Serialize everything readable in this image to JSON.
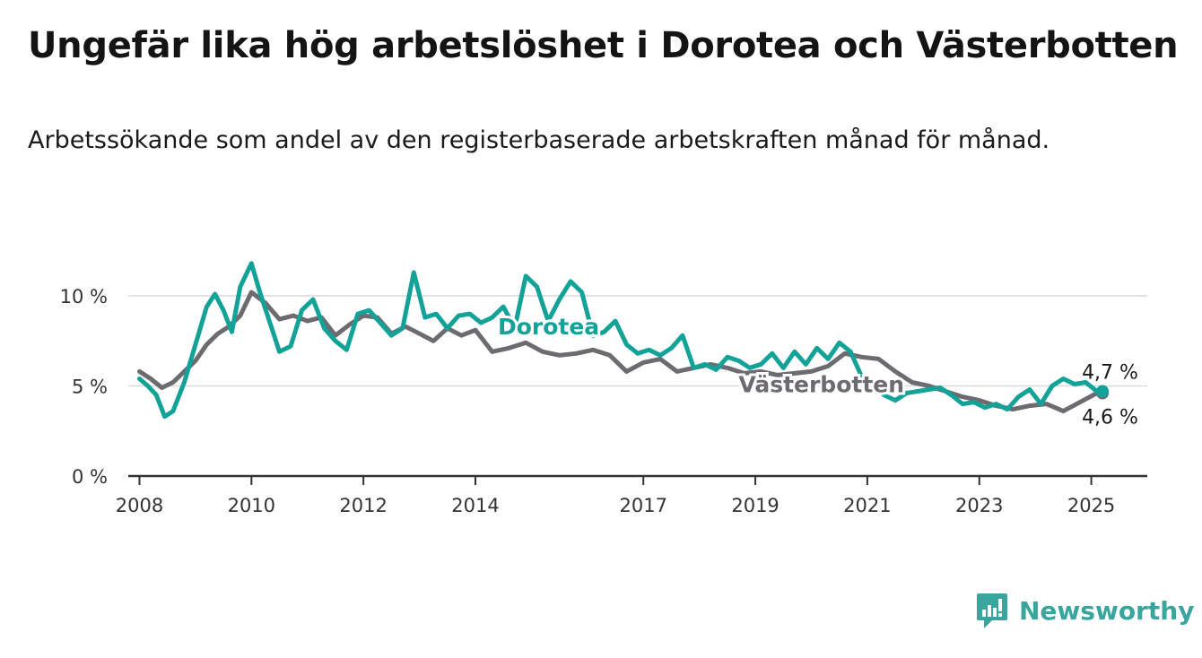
{
  "title": "Ungefär lika hög arbetslöshet i Dorotea och Västerbotten",
  "subtitle": "Arbetssökande som andel av den registerbaserade arbetskraften månad för månad.",
  "brand": {
    "name": "Newsworthy",
    "icon": "newsworthy-logo-icon",
    "color": "#3aa59c"
  },
  "chart_data": {
    "type": "line",
    "title": "",
    "xlabel": "",
    "ylabel": "",
    "xlim": [
      2007.8,
      2026.0
    ],
    "ylim": [
      0,
      10
    ],
    "grid": true,
    "legend": "inline labels",
    "x_ticks": [
      {
        "value": 2008,
        "label": "2008"
      },
      {
        "value": 2010,
        "label": "2010"
      },
      {
        "value": 2012,
        "label": "2012"
      },
      {
        "value": 2014,
        "label": "2014"
      },
      {
        "value": 2017,
        "label": "2017"
      },
      {
        "value": 2019,
        "label": "2019"
      },
      {
        "value": 2021,
        "label": "2021"
      },
      {
        "value": 2023,
        "label": "2023"
      },
      {
        "value": 2025,
        "label": "2025"
      }
    ],
    "y_ticks": [
      {
        "value": 0,
        "label": "0 %"
      },
      {
        "value": 5,
        "label": "5 %"
      },
      {
        "value": 10,
        "label": "10 %"
      }
    ],
    "series": [
      {
        "name": "Västerbotten",
        "color": "#6d6a70",
        "end_label": "4,6 %",
        "points": [
          [
            2008.0,
            5.8
          ],
          [
            2008.2,
            5.4
          ],
          [
            2008.4,
            4.9
          ],
          [
            2008.6,
            5.2
          ],
          [
            2008.8,
            5.8
          ],
          [
            2009.0,
            6.4
          ],
          [
            2009.2,
            7.3
          ],
          [
            2009.4,
            7.9
          ],
          [
            2009.6,
            8.3
          ],
          [
            2009.8,
            8.9
          ],
          [
            2010.0,
            10.2
          ],
          [
            2010.25,
            9.6
          ],
          [
            2010.5,
            8.7
          ],
          [
            2010.75,
            8.9
          ],
          [
            2011.0,
            8.6
          ],
          [
            2011.25,
            8.8
          ],
          [
            2011.5,
            7.8
          ],
          [
            2011.75,
            8.4
          ],
          [
            2012.0,
            8.9
          ],
          [
            2012.25,
            8.8
          ],
          [
            2012.5,
            7.9
          ],
          [
            2012.75,
            8.3
          ],
          [
            2013.0,
            7.9
          ],
          [
            2013.25,
            7.5
          ],
          [
            2013.5,
            8.2
          ],
          [
            2013.75,
            7.8
          ],
          [
            2014.0,
            8.1
          ],
          [
            2014.3,
            6.9
          ],
          [
            2014.6,
            7.1
          ],
          [
            2014.9,
            7.4
          ],
          [
            2015.2,
            6.9
          ],
          [
            2015.5,
            6.7
          ],
          [
            2015.8,
            6.8
          ],
          [
            2016.1,
            7.0
          ],
          [
            2016.4,
            6.7
          ],
          [
            2016.7,
            5.8
          ],
          [
            2017.0,
            6.3
          ],
          [
            2017.3,
            6.5
          ],
          [
            2017.6,
            5.8
          ],
          [
            2017.9,
            6.0
          ],
          [
            2018.2,
            6.2
          ],
          [
            2018.5,
            6.0
          ],
          [
            2018.8,
            5.7
          ],
          [
            2019.1,
            5.8
          ],
          [
            2019.4,
            5.6
          ],
          [
            2019.7,
            5.7
          ],
          [
            2020.0,
            5.8
          ],
          [
            2020.3,
            6.1
          ],
          [
            2020.6,
            6.8
          ],
          [
            2020.9,
            6.6
          ],
          [
            2021.2,
            6.5
          ],
          [
            2021.5,
            5.8
          ],
          [
            2021.8,
            5.2
          ],
          [
            2022.1,
            5.0
          ],
          [
            2022.4,
            4.7
          ],
          [
            2022.7,
            4.4
          ],
          [
            2023.0,
            4.2
          ],
          [
            2023.3,
            3.9
          ],
          [
            2023.6,
            3.7
          ],
          [
            2023.9,
            3.9
          ],
          [
            2024.2,
            4.0
          ],
          [
            2024.5,
            3.6
          ],
          [
            2024.8,
            4.1
          ],
          [
            2025.1,
            4.6
          ],
          [
            2025.2,
            4.6
          ]
        ]
      },
      {
        "name": "Dorotea",
        "color": "#13a297",
        "end_label": "4,7 %",
        "points": [
          [
            2008.0,
            5.4
          ],
          [
            2008.15,
            5.0
          ],
          [
            2008.3,
            4.5
          ],
          [
            2008.45,
            3.3
          ],
          [
            2008.6,
            3.6
          ],
          [
            2008.8,
            5.2
          ],
          [
            2009.0,
            7.3
          ],
          [
            2009.2,
            9.4
          ],
          [
            2009.35,
            10.1
          ],
          [
            2009.5,
            9.2
          ],
          [
            2009.65,
            8.0
          ],
          [
            2009.8,
            10.5
          ],
          [
            2010.0,
            11.8
          ],
          [
            2010.15,
            10.2
          ],
          [
            2010.3,
            8.8
          ],
          [
            2010.5,
            6.9
          ],
          [
            2010.7,
            7.2
          ],
          [
            2010.9,
            9.2
          ],
          [
            2011.1,
            9.8
          ],
          [
            2011.3,
            8.2
          ],
          [
            2011.5,
            7.5
          ],
          [
            2011.7,
            7.0
          ],
          [
            2011.9,
            9.0
          ],
          [
            2012.1,
            9.2
          ],
          [
            2012.3,
            8.5
          ],
          [
            2012.5,
            7.8
          ],
          [
            2012.7,
            8.2
          ],
          [
            2012.9,
            11.3
          ],
          [
            2013.1,
            8.8
          ],
          [
            2013.3,
            9.0
          ],
          [
            2013.5,
            8.2
          ],
          [
            2013.7,
            8.9
          ],
          [
            2013.9,
            9.0
          ],
          [
            2014.1,
            8.5
          ],
          [
            2014.3,
            8.8
          ],
          [
            2014.5,
            9.4
          ],
          [
            2014.7,
            8.2
          ],
          [
            2014.9,
            11.1
          ],
          [
            2015.1,
            10.5
          ],
          [
            2015.3,
            8.6
          ],
          [
            2015.5,
            9.8
          ],
          [
            2015.7,
            10.8
          ],
          [
            2015.9,
            10.2
          ],
          [
            2016.1,
            7.8
          ],
          [
            2016.3,
            8.0
          ],
          [
            2016.5,
            8.6
          ],
          [
            2016.7,
            7.3
          ],
          [
            2016.9,
            6.8
          ],
          [
            2017.1,
            7.0
          ],
          [
            2017.3,
            6.7
          ],
          [
            2017.5,
            7.1
          ],
          [
            2017.7,
            7.8
          ],
          [
            2017.9,
            6.0
          ],
          [
            2018.1,
            6.2
          ],
          [
            2018.3,
            5.9
          ],
          [
            2018.5,
            6.6
          ],
          [
            2018.7,
            6.4
          ],
          [
            2018.9,
            6.0
          ],
          [
            2019.1,
            6.2
          ],
          [
            2019.3,
            6.8
          ],
          [
            2019.5,
            6.0
          ],
          [
            2019.7,
            6.9
          ],
          [
            2019.9,
            6.2
          ],
          [
            2020.1,
            7.1
          ],
          [
            2020.3,
            6.5
          ],
          [
            2020.5,
            7.4
          ],
          [
            2020.7,
            6.9
          ],
          [
            2020.9,
            5.5
          ],
          [
            2021.1,
            5.1
          ],
          [
            2021.3,
            4.5
          ],
          [
            2021.5,
            4.2
          ],
          [
            2021.7,
            4.6
          ],
          [
            2021.9,
            4.7
          ],
          [
            2022.1,
            4.8
          ],
          [
            2022.3,
            4.9
          ],
          [
            2022.5,
            4.5
          ],
          [
            2022.7,
            4.0
          ],
          [
            2022.9,
            4.1
          ],
          [
            2023.1,
            3.8
          ],
          [
            2023.3,
            4.0
          ],
          [
            2023.5,
            3.7
          ],
          [
            2023.7,
            4.4
          ],
          [
            2023.9,
            4.8
          ],
          [
            2024.1,
            4.0
          ],
          [
            2024.3,
            5.0
          ],
          [
            2024.5,
            5.4
          ],
          [
            2024.7,
            5.1
          ],
          [
            2024.9,
            5.2
          ],
          [
            2025.1,
            4.7
          ],
          [
            2025.2,
            4.7
          ]
        ]
      }
    ],
    "series_labels": [
      {
        "name": "Dorotea",
        "x": 2014.4,
        "y": 8.3
      },
      {
        "name": "Västerbotten",
        "x": 2018.7,
        "y": 5.1
      }
    ]
  }
}
